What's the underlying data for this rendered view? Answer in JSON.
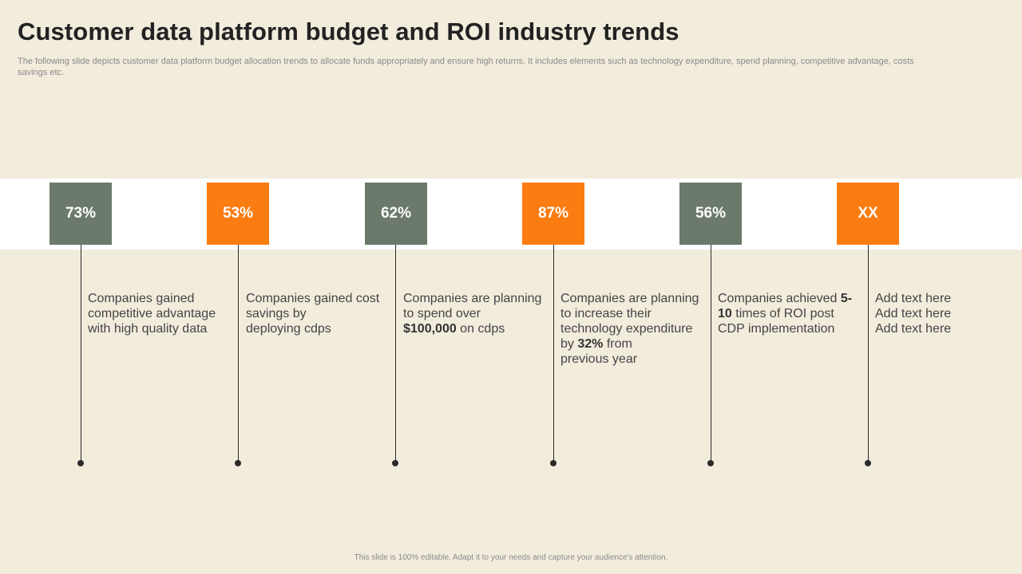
{
  "title": "Customer data platform budget and ROI industry trends",
  "subtitle": "The following slide depicts customer data platform budget allocation trends to allocate funds appropriately and ensure high returns. It includes elements such as technology expenditure, spend planning, competitive advantage, costs savings etc.",
  "colors": {
    "background": "#f2ecdd",
    "green_box": "#6b7a6a",
    "orange_box": "#fb7c11",
    "line": "#2b2b2b"
  },
  "stats": [
    {
      "value": "73%",
      "color": "green",
      "lines": [
        [
          "Companies gained"
        ],
        [
          "competitive advantage"
        ],
        [
          "with high quality data"
        ]
      ]
    },
    {
      "value": "53%",
      "color": "orange",
      "lines": [
        [
          "Companies gained cost"
        ],
        [
          "savings by"
        ],
        [
          "deploying cdps"
        ]
      ]
    },
    {
      "value": "62%",
      "color": "green",
      "lines": [
        [
          "Companies are planning"
        ],
        [
          "to spend over"
        ],
        [
          "$100,000",
          " on cdps"
        ]
      ]
    },
    {
      "value": "87%",
      "color": "orange",
      "lines": [
        [
          "Companies are planning"
        ],
        [
          "to increase their"
        ],
        [
          "technology expenditure"
        ],
        [
          "by ",
          "32%",
          " from"
        ],
        [
          "previous year"
        ]
      ]
    },
    {
      "value": "56%",
      "color": "green",
      "lines": [
        [
          "Companies achieved ",
          "5-"
        ],
        [
          "10",
          " times of ROI post"
        ],
        [
          "CDP implementation"
        ]
      ]
    },
    {
      "value": "XX",
      "color": "orange",
      "lines": [
        [
          "Add text here"
        ],
        [
          "Add text here"
        ],
        [
          "Add text here"
        ]
      ]
    }
  ],
  "footer": "This slide is 100% editable.  Adapt it to your needs and capture your audience's attention."
}
